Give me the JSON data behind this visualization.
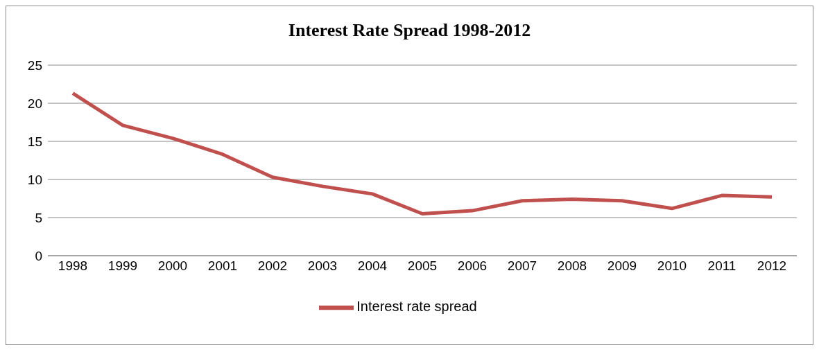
{
  "chart_data": {
    "type": "line",
    "title": "Interest Rate Spread 1998-2012",
    "categories": [
      "1998",
      "1999",
      "2000",
      "2001",
      "2002",
      "2003",
      "2004",
      "2005",
      "2006",
      "2007",
      "2008",
      "2009",
      "2010",
      "2011",
      "2012"
    ],
    "series": [
      {
        "name": "Interest rate spread",
        "color": "#c0504d",
        "values": [
          21.3,
          17.1,
          15.4,
          13.3,
          10.3,
          9.1,
          8.1,
          5.5,
          5.9,
          7.2,
          7.4,
          7.2,
          6.2,
          7.9,
          7.7
        ]
      }
    ],
    "ylim": [
      0,
      25
    ],
    "yticks": [
      0,
      5,
      10,
      15,
      20,
      25
    ],
    "grid": "y",
    "legend": "bottom",
    "marker": "none",
    "line_style": "solid"
  }
}
